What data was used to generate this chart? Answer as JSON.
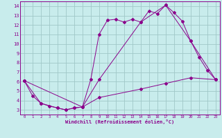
{
  "xlabel": "Windchill (Refroidissement éolien,°C)",
  "background_color": "#c8ecec",
  "grid_color": "#a0c8c8",
  "line_color": "#8b008b",
  "xlim": [
    -0.5,
    23.5
  ],
  "ylim": [
    2.5,
    14.5
  ],
  "xticks": [
    0,
    1,
    2,
    3,
    4,
    5,
    6,
    7,
    8,
    9,
    10,
    11,
    12,
    13,
    14,
    15,
    16,
    17,
    18,
    19,
    20,
    21,
    22,
    23
  ],
  "yticks": [
    3,
    4,
    5,
    6,
    7,
    8,
    9,
    10,
    11,
    12,
    13,
    14
  ],
  "line1_x": [
    0,
    1,
    2,
    3,
    4,
    5,
    6,
    7,
    8,
    9,
    10,
    11,
    12,
    13,
    14,
    15,
    16,
    17,
    18,
    19,
    20,
    21,
    22,
    23
  ],
  "line1_y": [
    6.1,
    4.5,
    3.7,
    3.4,
    3.2,
    3.0,
    3.2,
    3.3,
    6.2,
    11.0,
    12.5,
    12.6,
    12.3,
    12.6,
    12.3,
    13.5,
    13.2,
    14.1,
    13.3,
    12.4,
    10.3,
    8.6,
    7.2,
    6.2
  ],
  "line2_x": [
    0,
    7,
    9,
    14,
    17,
    20,
    23
  ],
  "line2_y": [
    6.1,
    3.3,
    6.2,
    12.3,
    14.1,
    10.3,
    6.2
  ],
  "line3_x": [
    0,
    2,
    4,
    5,
    6,
    7,
    9,
    14,
    17,
    20,
    23
  ],
  "line3_y": [
    6.1,
    3.7,
    3.2,
    3.0,
    3.2,
    3.3,
    4.3,
    5.2,
    5.8,
    6.4,
    6.2
  ]
}
